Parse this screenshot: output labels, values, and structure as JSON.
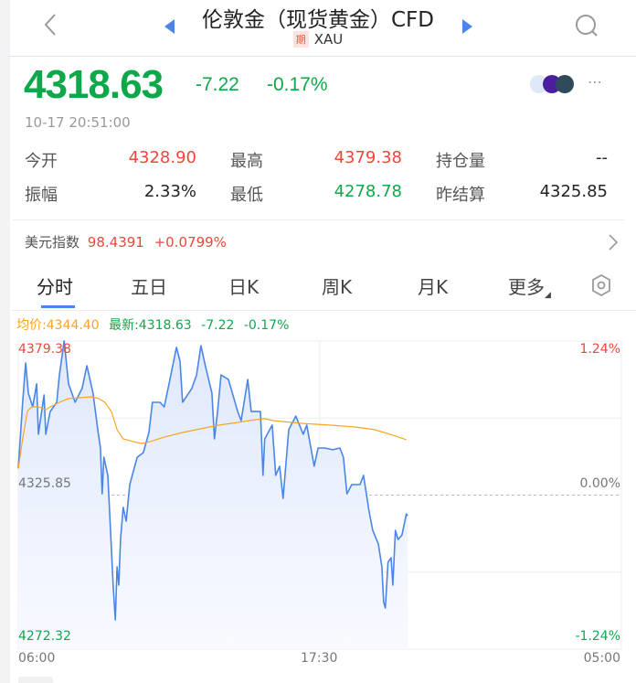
{
  "header": {
    "title": "伦敦金（现货黄金）CFD",
    "badge": "期",
    "symbol": "XAU"
  },
  "quote": {
    "price": "4318.63",
    "change": "-7.22",
    "change_pct": "-0.17%",
    "timestamp": "10-17 20:51:00"
  },
  "stats": [
    {
      "label": "今开",
      "value": "4328.90",
      "color": "red"
    },
    {
      "label": "最高",
      "value": "4379.38",
      "color": "red"
    },
    {
      "label": "持仓量",
      "value": "--",
      "color": "dark"
    },
    {
      "label": "振幅",
      "value": "2.33%",
      "color": "dark"
    },
    {
      "label": "最低",
      "value": "4278.78",
      "color": "green"
    },
    {
      "label": "昨结算",
      "value": "4325.85",
      "color": "dark"
    }
  ],
  "usd_index": {
    "label": "美元指数",
    "value": "98.4391",
    "change": "+0.0799%"
  },
  "tabs": [
    {
      "label": "分时"
    },
    {
      "label": "五日"
    },
    {
      "label": "日K"
    },
    {
      "label": "周K"
    },
    {
      "label": "月K"
    },
    {
      "label": "更多"
    }
  ],
  "legend": {
    "avg": "均价:4344.40",
    "latest": "最新:4318.63",
    "change": "-7.22",
    "change_pct": "-0.17%"
  },
  "colors": {
    "up": "#f0463a",
    "down": "#0ea84a",
    "price_line": "#4a86e8",
    "avg_line": "#f5a623",
    "accent": "#4a86e8"
  },
  "chart_data": {
    "type": "line",
    "y_labels": {
      "high": "4379.38",
      "mid": "4325.85",
      "low": "4272.32",
      "high_pct": "1.24%",
      "mid_pct": "0.00%",
      "low_pct": "-1.24%"
    },
    "ylim": [
      4272.32,
      4379.38
    ],
    "x_ticks": [
      "06:00",
      "17:30",
      "05:00"
    ],
    "xlim": [
      "06:00",
      "05:00"
    ],
    "grid": true,
    "series": [
      {
        "key": "price",
        "points": [
          [
            "06:00",
            4335.2
          ],
          [
            "06:10",
            4358.1
          ],
          [
            "06:17",
            4371.8
          ],
          [
            "06:23",
            4361.3
          ],
          [
            "06:33",
            4356.5
          ],
          [
            "06:42",
            4364.5
          ],
          [
            "06:46",
            4347.0
          ],
          [
            "06:59",
            4360.6
          ],
          [
            "07:03",
            4347.0
          ],
          [
            "07:13",
            4354.9
          ],
          [
            "07:28",
            4358.1
          ],
          [
            "07:34",
            4367.6
          ],
          [
            "07:45",
            4379.4
          ],
          [
            "07:55",
            4364.5
          ],
          [
            "08:10",
            4358.1
          ],
          [
            "08:26",
            4362.9
          ],
          [
            "08:37",
            4370.8
          ],
          [
            "08:51",
            4361.3
          ],
          [
            "09:02",
            4348.6
          ],
          [
            "09:08",
            4342.2
          ],
          [
            "09:12",
            4326.3
          ],
          [
            "09:16",
            4339.0
          ],
          [
            "09:25",
            4332.7
          ],
          [
            "09:33",
            4307.3
          ],
          [
            "09:37",
            4294.6
          ],
          [
            "09:42",
            4282.5
          ],
          [
            "09:46",
            4300.9
          ],
          [
            "09:50",
            4294.6
          ],
          [
            "09:54",
            4310.4
          ],
          [
            "10:00",
            4321.6
          ],
          [
            "10:07",
            4316.8
          ],
          [
            "10:15",
            4329.5
          ],
          [
            "10:32",
            4339.0
          ],
          [
            "10:46",
            4340.6
          ],
          [
            "10:59",
            4347.6
          ],
          [
            "11:07",
            4358.1
          ],
          [
            "11:24",
            4358.1
          ],
          [
            "11:34",
            4356.5
          ],
          [
            "11:45",
            4364.5
          ],
          [
            "12:02",
            4377.2
          ],
          [
            "12:10",
            4372.4
          ],
          [
            "12:16",
            4358.1
          ],
          [
            "12:37",
            4362.9
          ],
          [
            "12:48",
            4367.6
          ],
          [
            "12:58",
            4377.8
          ],
          [
            "13:08",
            4370.8
          ],
          [
            "13:23",
            4361.3
          ],
          [
            "13:29",
            4345.4
          ],
          [
            "13:36",
            4354.9
          ],
          [
            "13:44",
            4367.6
          ],
          [
            "14:01",
            4366.0
          ],
          [
            "14:22",
            4354.9
          ],
          [
            "14:30",
            4351.7
          ],
          [
            "14:45",
            4366.0
          ],
          [
            "14:53",
            4354.9
          ],
          [
            "15:14",
            4354.9
          ],
          [
            "15:20",
            4332.7
          ],
          [
            "15:24",
            4345.4
          ],
          [
            "15:41",
            4350.2
          ],
          [
            "15:49",
            4332.7
          ],
          [
            "15:58",
            4335.9
          ],
          [
            "16:06",
            4324.7
          ],
          [
            "16:19",
            4348.6
          ],
          [
            "16:35",
            4353.3
          ],
          [
            "16:52",
            4347.0
          ],
          [
            "17:00",
            4350.2
          ],
          [
            "17:17",
            4335.9
          ],
          [
            "17:26",
            4342.2
          ],
          [
            "17:42",
            4342.2
          ],
          [
            "17:59",
            4341.6
          ],
          [
            "18:16",
            4342.2
          ],
          [
            "18:24",
            4339.0
          ],
          [
            "18:32",
            4326.3
          ],
          [
            "18:43",
            4329.5
          ],
          [
            "19:02",
            4329.5
          ],
          [
            "19:10",
            4332.7
          ],
          [
            "19:23",
            4320.0
          ],
          [
            "19:31",
            4313.6
          ],
          [
            "19:44",
            4308.8
          ],
          [
            "19:52",
            4300.9
          ],
          [
            "19:56",
            4288.8
          ],
          [
            "20:00",
            4286.6
          ],
          [
            "20:06",
            4302.5
          ],
          [
            "20:13",
            4304.1
          ],
          [
            "20:17",
            4294.6
          ],
          [
            "20:23",
            4313.6
          ],
          [
            "20:29",
            4310.4
          ],
          [
            "20:38",
            4312.0
          ],
          [
            "20:48",
            4319.3
          ],
          [
            "20:51",
            4318.63
          ]
        ]
      },
      {
        "key": "avg",
        "points": [
          [
            "06:00",
            4335.0
          ],
          [
            "06:10",
            4345.4
          ],
          [
            "06:21",
            4355.0
          ],
          [
            "06:31",
            4356.5
          ],
          [
            "06:46",
            4356.5
          ],
          [
            "07:03",
            4355.5
          ],
          [
            "07:13",
            4356.5
          ],
          [
            "07:34",
            4358.1
          ],
          [
            "07:55",
            4359.4
          ],
          [
            "08:26",
            4359.7
          ],
          [
            "08:47",
            4360.0
          ],
          [
            "09:04",
            4359.4
          ],
          [
            "09:18",
            4358.1
          ],
          [
            "09:33",
            4354.9
          ],
          [
            "09:46",
            4348.6
          ],
          [
            "10:00",
            4345.4
          ],
          [
            "10:21",
            4344.5
          ],
          [
            "10:42",
            4343.8
          ],
          [
            "11:03",
            4344.5
          ],
          [
            "11:34",
            4346.0
          ],
          [
            "12:16",
            4347.6
          ],
          [
            "12:58",
            4348.9
          ],
          [
            "13:40",
            4350.2
          ],
          [
            "14:22",
            4351.1
          ],
          [
            "15:04",
            4352.1
          ],
          [
            "15:24",
            4352.4
          ],
          [
            "15:45",
            4351.7
          ],
          [
            "16:48",
            4350.8
          ],
          [
            "17:51",
            4350.2
          ],
          [
            "18:53",
            4349.5
          ],
          [
            "19:35",
            4348.6
          ],
          [
            "20:17",
            4346.7
          ],
          [
            "20:48",
            4345.1
          ]
        ]
      }
    ]
  }
}
